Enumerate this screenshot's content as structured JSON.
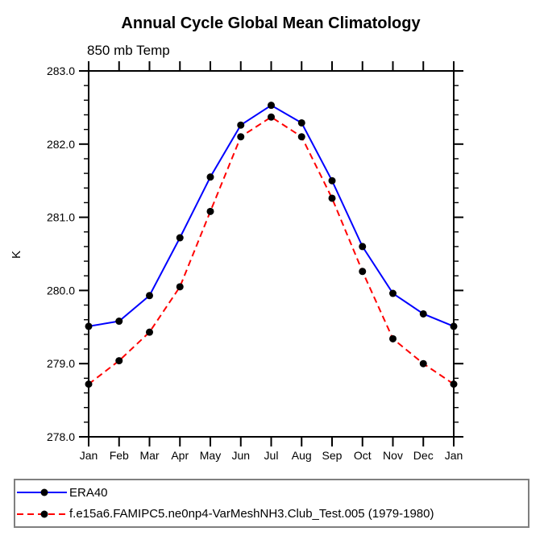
{
  "page": {
    "background": "#ffffff"
  },
  "chart_data": {
    "type": "line",
    "title": "Annual Cycle Global Mean Climatology",
    "subtitle": "850 mb Temp",
    "ylabel": "K",
    "xlabel": "",
    "categories": [
      "Jan",
      "Feb",
      "Mar",
      "Apr",
      "May",
      "Jun",
      "Jul",
      "Aug",
      "Sep",
      "Oct",
      "Nov",
      "Dec",
      "Jan"
    ],
    "series": [
      {
        "name": "ERA40",
        "color": "#0000ff",
        "line_style": "solid",
        "dash": "none",
        "marker": "black-dot",
        "marker_color": "#000000",
        "values": [
          279.51,
          279.58,
          279.93,
          280.72,
          281.55,
          282.26,
          282.53,
          282.29,
          281.5,
          280.6,
          279.96,
          279.68,
          279.51
        ]
      },
      {
        "name": "f.e15a6.FAMIPC5.ne0np4-VarMeshNH3.Club_Test.005 (1979-1980)",
        "color": "#ff0000",
        "line_style": "dashed",
        "dash": "8 5",
        "marker": "black-dot",
        "marker_color": "#000000",
        "values": [
          278.72,
          279.04,
          279.43,
          280.05,
          281.08,
          282.1,
          282.37,
          282.1,
          281.26,
          280.26,
          279.34,
          279.0,
          278.72
        ]
      }
    ],
    "ylim": [
      278.0,
      283.0
    ],
    "ytick_labels": [
      "278.0",
      "279.0",
      "280.0",
      "281.0",
      "282.0",
      "283.0"
    ],
    "ytick_major": 1.0,
    "ytick_minor": 0.2,
    "axis_color": "#000000",
    "grid": "off",
    "legend_position": "bottom-left"
  }
}
